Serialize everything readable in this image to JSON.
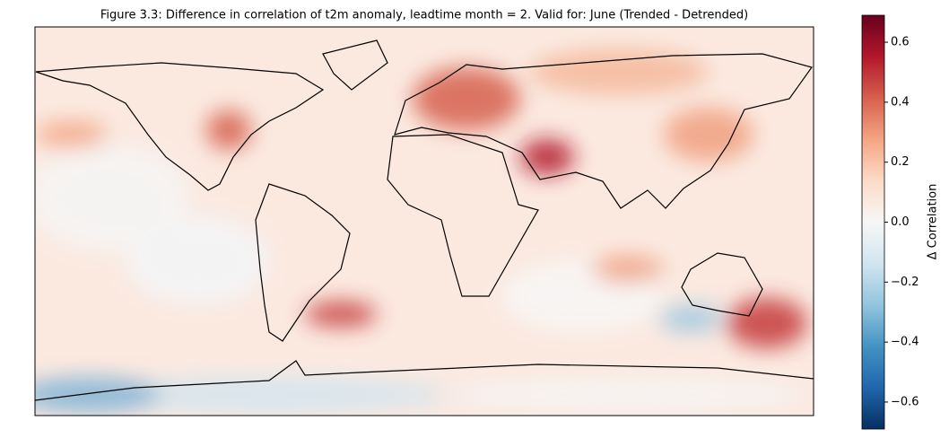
{
  "chart_data": {
    "type": "heatmap",
    "title": "Figure 3.3: Difference in correlation of t2m anomaly, leadtime month = 2. Valid for: June (Trended - Detrended)",
    "colorbar": {
      "label": "Δ Correlation",
      "lim": [
        -0.69,
        0.69
      ],
      "ticks": [
        {
          "value": -0.6,
          "label": "−0.6"
        },
        {
          "value": -0.4,
          "label": "−0.4"
        },
        {
          "value": -0.2,
          "label": "−0.2"
        },
        {
          "value": 0.0,
          "label": "0.0"
        },
        0.2,
        0.4,
        0.6
      ],
      "colormap": "RdBu_r"
    }
  }
}
